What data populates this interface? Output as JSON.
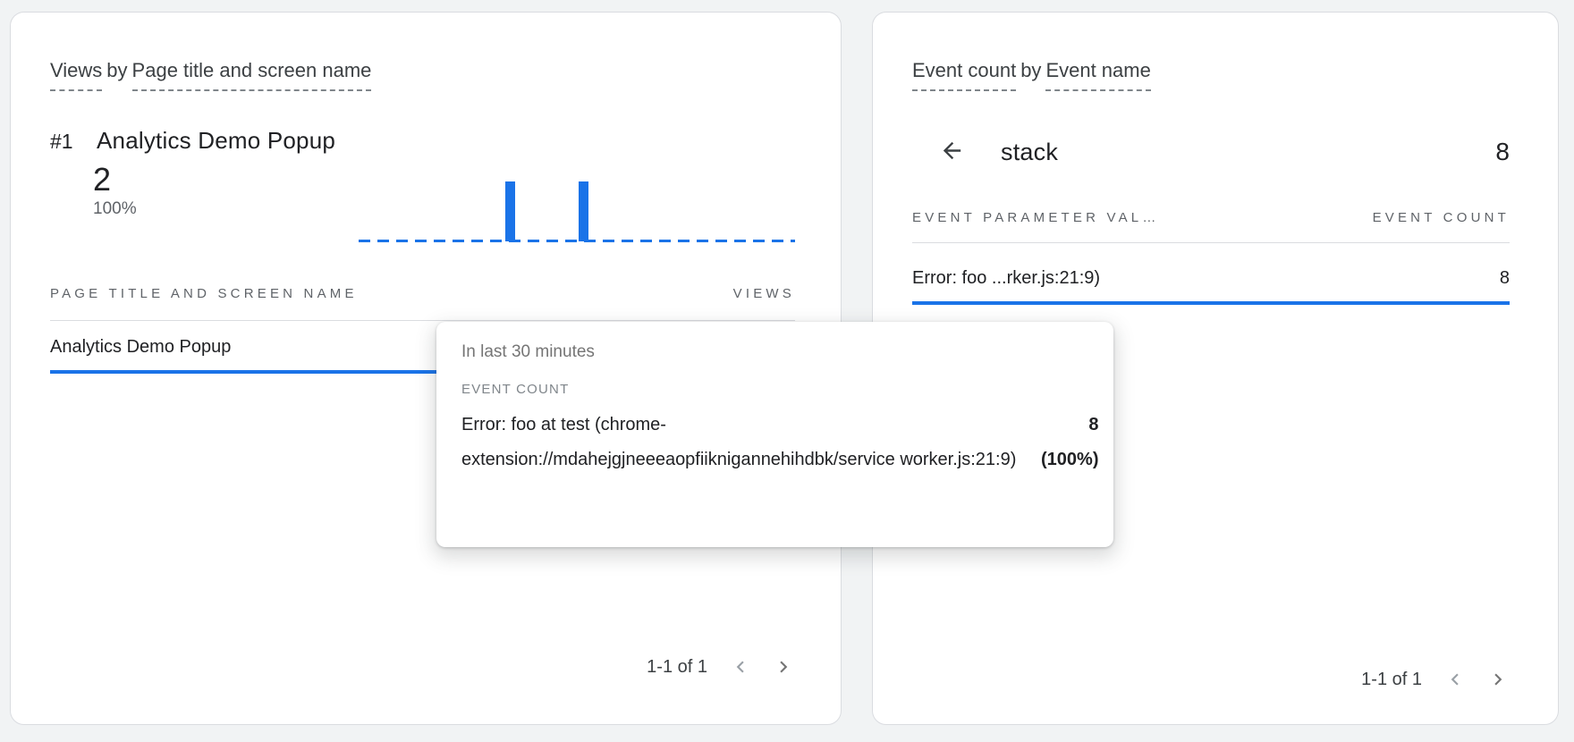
{
  "colors": {
    "accent_blue": "#1a73e8",
    "card_border": "#dadce0",
    "page_background": "#f1f3f4",
    "text_primary": "#202124",
    "text_secondary": "#5f6368"
  },
  "left_card": {
    "title": {
      "metric": "Views",
      "connector": "by",
      "dimension": "Page title and screen name"
    },
    "entity": {
      "rank": "#1",
      "name": "Analytics Demo Popup"
    },
    "stats": {
      "value": "2",
      "percent": "100%"
    },
    "sparkline": {
      "type": "bar",
      "color": "#1a73e8",
      "bars": [
        {
          "left_pct": 33.7
        },
        {
          "left_pct": 50.5
        }
      ]
    },
    "table": {
      "columns": {
        "name": "PAGE TITLE AND SCREEN NAME",
        "value": "VIEWS"
      },
      "rows": [
        {
          "name": "Analytics Demo Popup",
          "value": ""
        }
      ]
    },
    "pagination": {
      "label": "1-1 of 1"
    }
  },
  "right_card": {
    "title": {
      "metric": "Event count",
      "connector": "by",
      "dimension": "Event name"
    },
    "breadcrumb": {
      "label": "stack",
      "value": "8"
    },
    "table": {
      "columns": {
        "name": "EVENT PARAMETER VAL…",
        "value": "EVENT COUNT"
      },
      "rows": [
        {
          "name": "Error: foo ...rker.js:21:9)",
          "value": "8"
        }
      ]
    },
    "pagination": {
      "label": "1-1 of 1"
    }
  },
  "tooltip": {
    "timeframe": "In last 30 minutes",
    "section_label": "EVENT COUNT",
    "row": {
      "name": "Error: foo at test (chrome-extension://mdahejgjneeeaopfiiknigannehihdbk/service worker.js:21:9)",
      "value": "8",
      "percent": "(100%)"
    }
  }
}
